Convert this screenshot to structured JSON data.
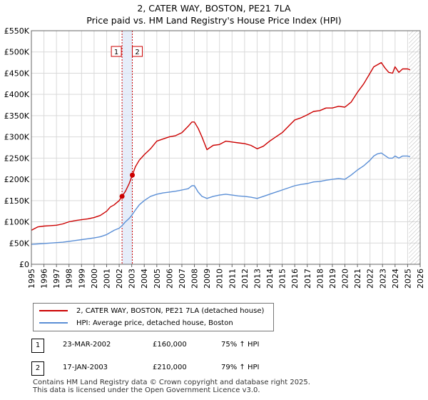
{
  "title_line1": "2, CATER WAY, BOSTON, PE21 7LA",
  "title_line2": "Price paid vs. HM Land Registry's House Price Index (HPI)",
  "colors": {
    "property": "#cc0000",
    "hpi": "#5b8fd6",
    "marker_line": "#cc0000",
    "shade": "#dce6f7"
  },
  "chart_data": {
    "type": "line",
    "title": "2, CATER WAY, BOSTON, PE21 7LA — Price paid vs. HM Land Registry's House Price Index (HPI)",
    "xlim": [
      1995,
      2026
    ],
    "ylim": [
      0,
      550000
    ],
    "y_ticks": [
      0,
      50000,
      100000,
      150000,
      200000,
      250000,
      300000,
      350000,
      400000,
      450000,
      500000,
      550000
    ],
    "y_tick_labels": [
      "£0",
      "£50K",
      "£100K",
      "£150K",
      "£200K",
      "£250K",
      "£300K",
      "£350K",
      "£400K",
      "£450K",
      "£500K",
      "£550K"
    ],
    "x_ticks": [
      1995,
      1996,
      1997,
      1998,
      1999,
      2000,
      2001,
      2002,
      2003,
      2004,
      2005,
      2006,
      2007,
      2008,
      2009,
      2010,
      2011,
      2012,
      2013,
      2014,
      2015,
      2016,
      2017,
      2018,
      2019,
      2020,
      2021,
      2022,
      2023,
      2024,
      2025,
      2026
    ],
    "grid": true,
    "future_hatch_from": 2025.1,
    "series": [
      {
        "name": "2, CATER WAY, BOSTON, PE21 7LA (detached house)",
        "color": "#cc0000",
        "x": [
          1995.0,
          1995.5,
          1996.0,
          1996.5,
          1997.0,
          1997.5,
          1998.0,
          1998.5,
          1999.0,
          1999.5,
          2000.0,
          2000.5,
          2001.0,
          2001.3,
          2001.6,
          2002.0,
          2002.23,
          2002.5,
          2002.8,
          2003.05,
          2003.3,
          2003.6,
          2004.0,
          2004.5,
          2005.0,
          2005.5,
          2006.0,
          2006.5,
          2007.0,
          2007.5,
          2007.8,
          2008.0,
          2008.3,
          2008.6,
          2009.0,
          2009.5,
          2010.0,
          2010.5,
          2011.0,
          2011.5,
          2012.0,
          2012.5,
          2013.0,
          2013.5,
          2014.0,
          2014.5,
          2015.0,
          2015.5,
          2016.0,
          2016.5,
          2017.0,
          2017.5,
          2018.0,
          2018.5,
          2019.0,
          2019.5,
          2020.0,
          2020.5,
          2021.0,
          2021.5,
          2022.0,
          2022.3,
          2022.6,
          2022.9,
          2023.2,
          2023.5,
          2023.8,
          2024.0,
          2024.3,
          2024.6,
          2025.0,
          2025.2
        ],
        "values": [
          80000,
          88000,
          90000,
          91000,
          92000,
          95000,
          100000,
          103000,
          105000,
          107000,
          110000,
          115000,
          125000,
          135000,
          140000,
          150000,
          160000,
          172000,
          190000,
          210000,
          230000,
          245000,
          258000,
          272000,
          290000,
          295000,
          300000,
          303000,
          310000,
          325000,
          335000,
          335000,
          320000,
          300000,
          270000,
          280000,
          282000,
          290000,
          288000,
          286000,
          284000,
          280000,
          272000,
          278000,
          290000,
          300000,
          310000,
          325000,
          340000,
          345000,
          352000,
          360000,
          362000,
          368000,
          368000,
          372000,
          370000,
          382000,
          405000,
          425000,
          450000,
          465000,
          470000,
          475000,
          462000,
          452000,
          450000,
          465000,
          452000,
          460000,
          460000,
          458000
        ]
      },
      {
        "name": "HPI: Average price, detached house, Boston",
        "color": "#5b8fd6",
        "x": [
          1995.0,
          1995.5,
          1996.0,
          1996.5,
          1997.0,
          1997.5,
          1998.0,
          1998.5,
          1999.0,
          1999.5,
          2000.0,
          2000.5,
          2001.0,
          2001.3,
          2001.6,
          2002.0,
          2002.23,
          2002.5,
          2002.8,
          2003.05,
          2003.3,
          2003.6,
          2004.0,
          2004.5,
          2005.0,
          2005.5,
          2006.0,
          2006.5,
          2007.0,
          2007.5,
          2007.8,
          2008.0,
          2008.3,
          2008.6,
          2009.0,
          2009.5,
          2010.0,
          2010.5,
          2011.0,
          2011.5,
          2012.0,
          2012.5,
          2013.0,
          2013.5,
          2014.0,
          2014.5,
          2015.0,
          2015.5,
          2016.0,
          2016.5,
          2017.0,
          2017.5,
          2018.0,
          2018.5,
          2019.0,
          2019.5,
          2020.0,
          2020.5,
          2021.0,
          2021.5,
          2022.0,
          2022.3,
          2022.6,
          2022.9,
          2023.2,
          2023.5,
          2023.8,
          2024.0,
          2024.3,
          2024.6,
          2025.0,
          2025.2
        ],
        "values": [
          47000,
          48000,
          49000,
          50000,
          51000,
          52000,
          54000,
          56000,
          58000,
          60000,
          62000,
          65000,
          70000,
          75000,
          80000,
          85000,
          91000,
          100000,
          108000,
          117000,
          128000,
          140000,
          150000,
          160000,
          165000,
          168000,
          170000,
          172000,
          175000,
          178000,
          185000,
          185000,
          170000,
          160000,
          155000,
          160000,
          163000,
          165000,
          163000,
          161000,
          160000,
          158000,
          155000,
          160000,
          165000,
          170000,
          175000,
          180000,
          185000,
          188000,
          190000,
          194000,
          195000,
          198000,
          200000,
          202000,
          200000,
          210000,
          222000,
          232000,
          245000,
          255000,
          260000,
          262000,
          256000,
          250000,
          250000,
          255000,
          250000,
          255000,
          255000,
          253000
        ]
      }
    ],
    "transactions": [
      {
        "label": "1",
        "date": "23-MAR-2002",
        "x": 2002.23,
        "price": 160000,
        "price_label": "£160,000",
        "hpi": "75% ↑ HPI"
      },
      {
        "label": "2",
        "date": "17-JAN-2003",
        "x": 2003.05,
        "price": 210000,
        "price_label": "£210,000",
        "hpi": "79% ↑ HPI"
      }
    ]
  },
  "legend": {
    "property_label": "2, CATER WAY, BOSTON, PE21 7LA (detached house)",
    "hpi_label": "HPI: Average price, detached house, Boston"
  },
  "footer_line1": "Contains HM Land Registry data © Crown copyright and database right 2025.",
  "footer_line2": "This data is licensed under the Open Government Licence v3.0."
}
